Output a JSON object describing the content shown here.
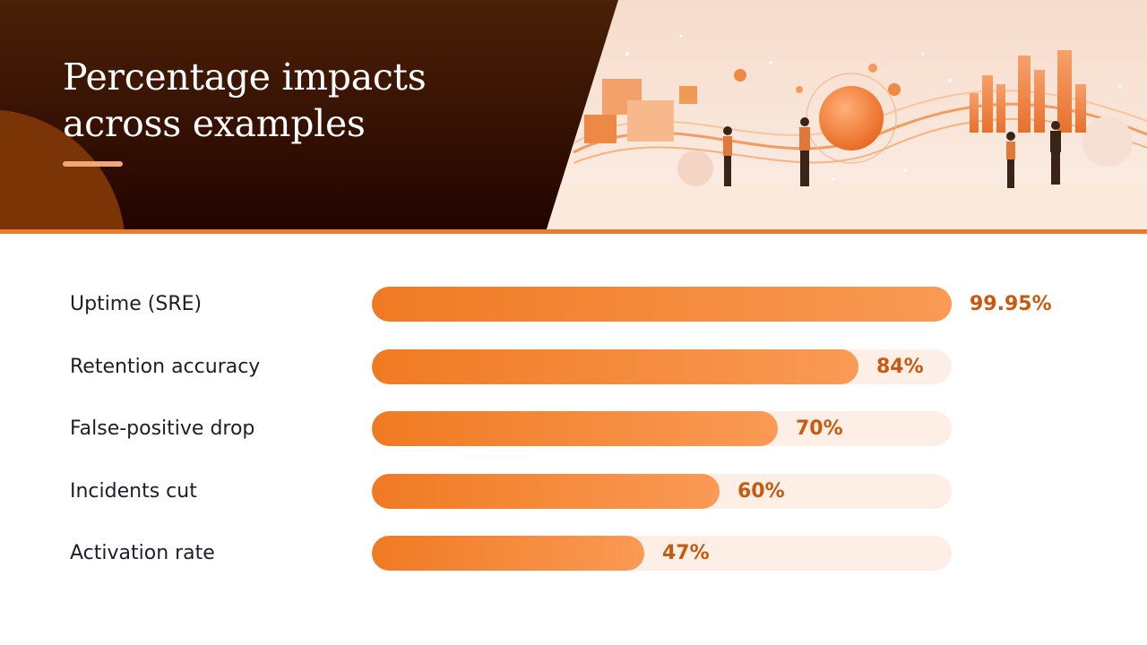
{
  "header": {
    "title": "Percentage impacts across examples"
  },
  "colors": {
    "accent": "#ec7a2c",
    "bar_start": "#f07a22",
    "bar_end": "#fa9a55",
    "track": "#fdefe6",
    "value_text": "#c75a10",
    "label_text": "#1c1d2e",
    "header_dark": "#3a1404"
  },
  "chart_data": {
    "type": "bar",
    "orientation": "horizontal",
    "categories": [
      "Uptime (SRE)",
      "Retention accuracy",
      "False-positive drop",
      "Incidents cut",
      "Activation rate"
    ],
    "values": [
      99.95,
      84,
      70,
      60,
      47
    ],
    "value_labels": [
      "99.95%",
      "84%",
      "70%",
      "60%",
      "47%"
    ],
    "xlim": [
      0,
      100
    ],
    "grid": false,
    "legend": false
  }
}
